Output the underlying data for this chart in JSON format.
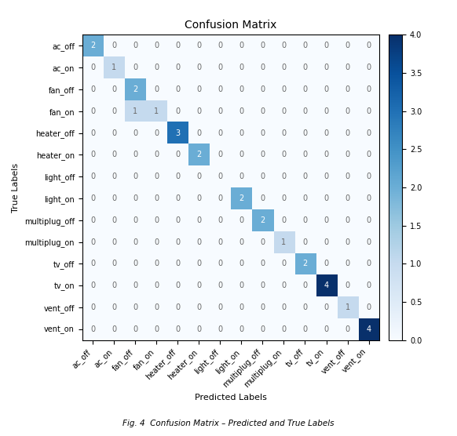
{
  "title": "Confusion Matrix",
  "xlabel": "Predicted Labels",
  "ylabel": "True Labels",
  "labels": [
    "ac_off",
    "ac_on",
    "fan_off",
    "fan_on",
    "heater_off",
    "heater_on",
    "light_off",
    "light_on",
    "multiplug_off",
    "multiplug_on",
    "tv_off",
    "tv_on",
    "vent_off",
    "vent_on"
  ],
  "matrix": [
    [
      2,
      0,
      0,
      0,
      0,
      0,
      0,
      0,
      0,
      0,
      0,
      0,
      0,
      0
    ],
    [
      0,
      1,
      0,
      0,
      0,
      0,
      0,
      0,
      0,
      0,
      0,
      0,
      0,
      0
    ],
    [
      0,
      0,
      2,
      0,
      0,
      0,
      0,
      0,
      0,
      0,
      0,
      0,
      0,
      0
    ],
    [
      0,
      0,
      1,
      1,
      0,
      0,
      0,
      0,
      0,
      0,
      0,
      0,
      0,
      0
    ],
    [
      0,
      0,
      0,
      0,
      3,
      0,
      0,
      0,
      0,
      0,
      0,
      0,
      0,
      0
    ],
    [
      0,
      0,
      0,
      0,
      0,
      2,
      0,
      0,
      0,
      0,
      0,
      0,
      0,
      0
    ],
    [
      0,
      0,
      0,
      0,
      0,
      0,
      0,
      0,
      0,
      0,
      0,
      0,
      0,
      0
    ],
    [
      0,
      0,
      0,
      0,
      0,
      0,
      0,
      2,
      0,
      0,
      0,
      0,
      0,
      0
    ],
    [
      0,
      0,
      0,
      0,
      0,
      0,
      0,
      0,
      2,
      0,
      0,
      0,
      0,
      0
    ],
    [
      0,
      0,
      0,
      0,
      0,
      0,
      0,
      0,
      0,
      1,
      0,
      0,
      0,
      0
    ],
    [
      0,
      0,
      0,
      0,
      0,
      0,
      0,
      0,
      0,
      0,
      2,
      0,
      0,
      0
    ],
    [
      0,
      0,
      0,
      0,
      0,
      0,
      0,
      0,
      0,
      0,
      0,
      4,
      0,
      0
    ],
    [
      0,
      0,
      0,
      0,
      0,
      0,
      0,
      0,
      0,
      0,
      0,
      0,
      1,
      0
    ],
    [
      0,
      0,
      0,
      0,
      0,
      0,
      0,
      0,
      0,
      0,
      0,
      0,
      0,
      4
    ]
  ],
  "cmap": "Blues",
  "colorbar_ticks": [
    0.0,
    0.5,
    1.0,
    1.5,
    2.0,
    2.5,
    3.0,
    3.5,
    4.0
  ],
  "vmin": 0,
  "vmax": 4,
  "text_color_threshold": 2,
  "title_fontsize": 10,
  "axis_label_fontsize": 8,
  "tick_fontsize": 7,
  "cell_text_fontsize": 7,
  "figure_caption": "Fig. 4  Confusion Matrix – Predicted and True Labels"
}
